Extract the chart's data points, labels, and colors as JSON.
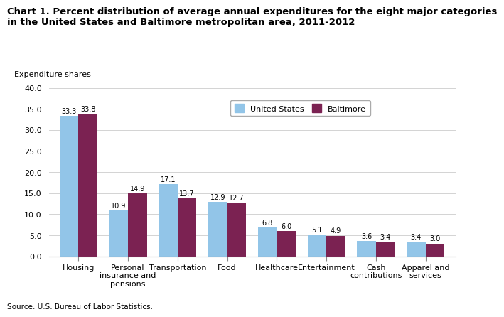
{
  "title": "Chart 1. Percent distribution of average annual expenditures for the eight major categories\nin the United States and Baltimore metropolitan area, 2011-2012",
  "ylabel_label": "Expenditure shares",
  "categories": [
    "Housing",
    "Personal\ninsurance and\npensions",
    "Transportation",
    "Food",
    "Healthcare",
    "Entertainment",
    "Cash\ncontributions",
    "Apparel and\nservices"
  ],
  "us_values": [
    33.3,
    10.9,
    17.1,
    12.9,
    6.8,
    5.1,
    3.6,
    3.4
  ],
  "balt_values": [
    33.8,
    14.9,
    13.7,
    12.7,
    6.0,
    4.9,
    3.4,
    3.0
  ],
  "us_color": "#92C5E8",
  "balt_color": "#7B2252",
  "ylim": [
    0,
    40.0
  ],
  "yticks": [
    0.0,
    5.0,
    10.0,
    15.0,
    20.0,
    25.0,
    30.0,
    35.0,
    40.0
  ],
  "legend_us": "United States",
  "legend_balt": "Baltimore",
  "source": "Source: U.S. Bureau of Labor Statistics.",
  "bar_width": 0.38,
  "label_fontsize": 7.0,
  "tick_fontsize": 8,
  "title_fontsize": 9.5
}
